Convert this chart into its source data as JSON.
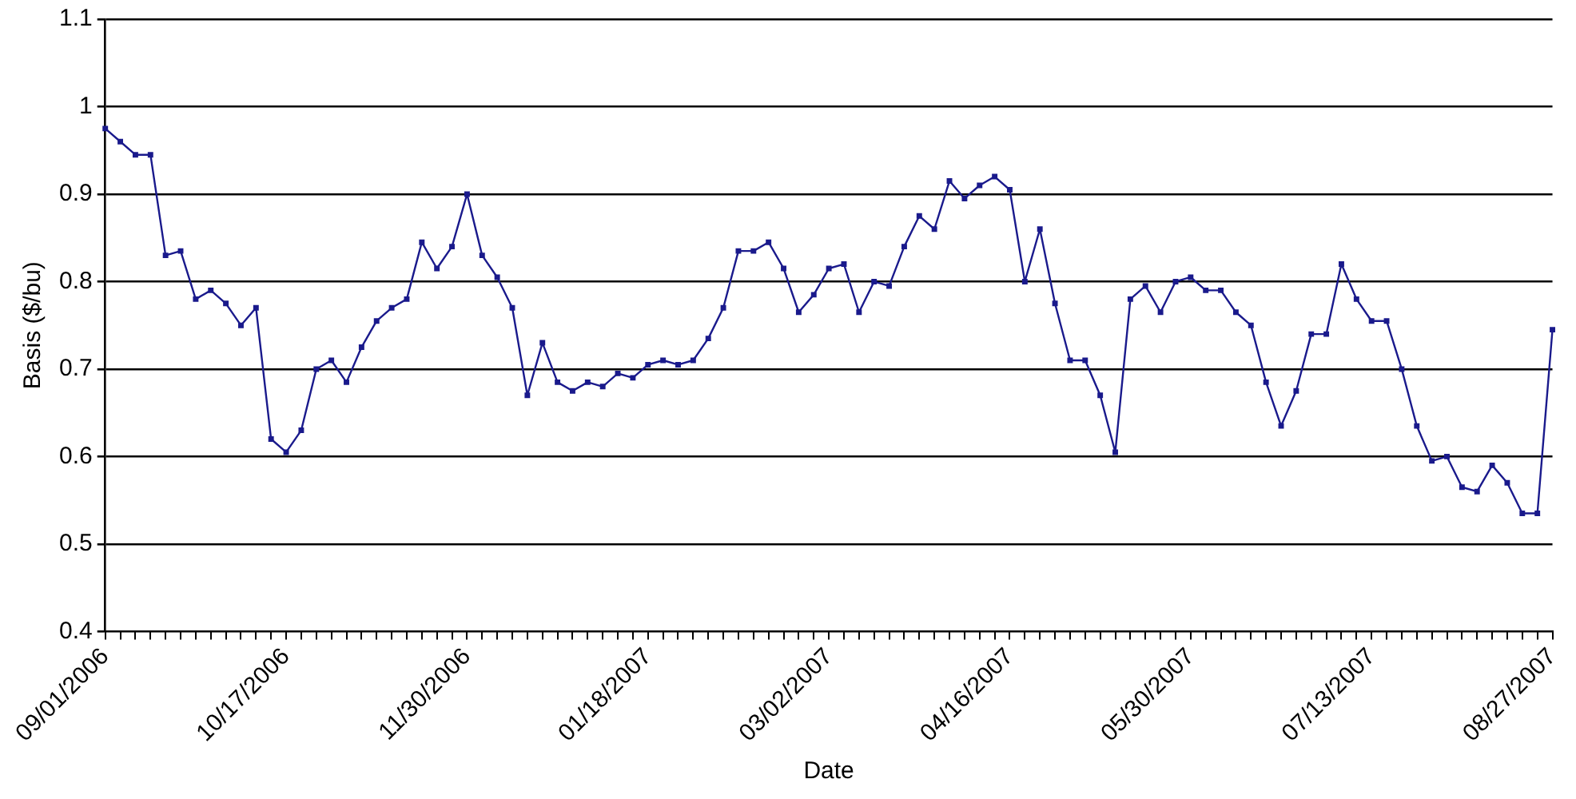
{
  "chart_data": {
    "type": "line",
    "xlabel": "Date",
    "ylabel": "Basis ($/bu)",
    "categories": [
      "09/01/2006",
      null,
      null,
      null,
      null,
      null,
      null,
      null,
      null,
      null,
      null,
      null,
      "10/17/2006",
      null,
      null,
      null,
      null,
      null,
      null,
      null,
      null,
      null,
      null,
      null,
      "11/30/2006",
      null,
      null,
      null,
      null,
      null,
      null,
      null,
      null,
      null,
      null,
      null,
      "01/18/2007",
      null,
      null,
      null,
      null,
      null,
      null,
      null,
      null,
      null,
      null,
      null,
      "03/02/2007",
      null,
      null,
      null,
      null,
      null,
      null,
      null,
      null,
      null,
      null,
      null,
      "04/16/2007",
      null,
      null,
      null,
      null,
      null,
      null,
      null,
      null,
      null,
      null,
      null,
      "05/30/2007",
      null,
      null,
      null,
      null,
      null,
      null,
      null,
      null,
      null,
      null,
      null,
      "07/13/2007",
      null,
      null,
      null,
      null,
      null,
      null,
      null,
      null,
      null,
      null,
      null,
      "08/27/2007"
    ],
    "series": [
      {
        "color": "#1a1a8c",
        "values": [
          0.975,
          0.96,
          0.945,
          0.945,
          0.83,
          0.835,
          0.78,
          0.79,
          0.775,
          0.75,
          0.77,
          0.62,
          0.605,
          0.63,
          0.7,
          0.71,
          0.685,
          0.725,
          0.755,
          0.77,
          0.78,
          0.845,
          0.815,
          0.84,
          0.9,
          0.83,
          0.805,
          0.77,
          0.67,
          0.73,
          0.685,
          0.675,
          0.685,
          0.68,
          0.695,
          0.69,
          0.705,
          0.71,
          0.705,
          0.71,
          0.735,
          0.77,
          0.835,
          0.835,
          0.845,
          0.815,
          0.765,
          0.785,
          0.815,
          0.82,
          0.765,
          0.8,
          0.795,
          0.84,
          0.875,
          0.86,
          0.915,
          0.895,
          0.91,
          0.92,
          0.905,
          0.8,
          0.86,
          0.775,
          0.71,
          0.71,
          0.67,
          0.605,
          0.78,
          0.795,
          0.765,
          0.8,
          0.805,
          0.79,
          0.79,
          0.765,
          0.75,
          0.685,
          0.635,
          0.675,
          0.74,
          0.74,
          0.82,
          0.78,
          0.755,
          0.755,
          0.7,
          0.635,
          0.595,
          0.6,
          0.565,
          0.56,
          0.59,
          0.57,
          0.535,
          0.535,
          0.745
        ]
      }
    ],
    "ylim": [
      0.4,
      1.1
    ],
    "yticks": [
      0.4,
      0.5,
      0.6,
      0.7,
      0.8,
      0.9,
      1,
      1.1
    ],
    "grid": "y",
    "legend": false,
    "marker": "square",
    "line_style": "solid"
  }
}
